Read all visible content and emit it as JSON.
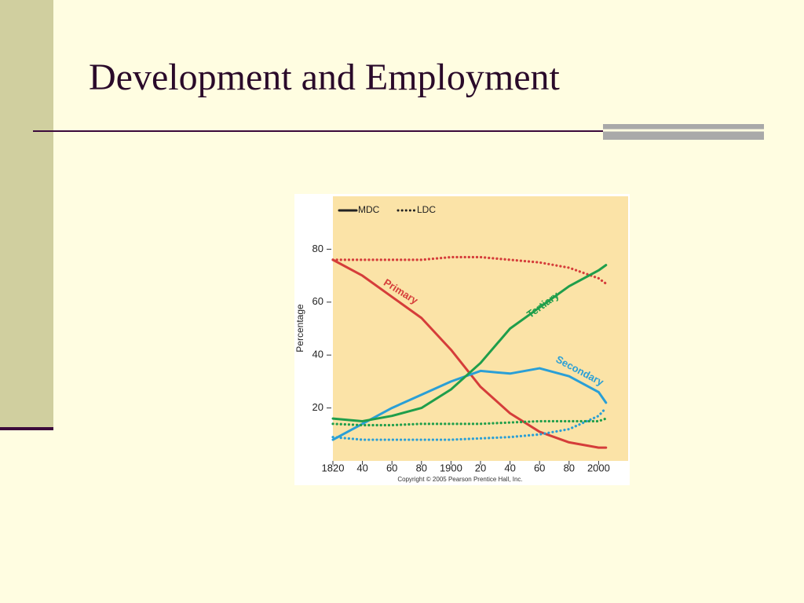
{
  "slide_title": "Development and Employment",
  "chart_data": {
    "type": "line",
    "ylabel": "Percentage",
    "note": "Copyright © 2005 Pearson Prentice Hall, Inc.",
    "x": [
      1820,
      1840,
      1860,
      1880,
      1900,
      1920,
      1940,
      1960,
      1980,
      2000,
      2005
    ],
    "xlim": [
      1820,
      2020
    ],
    "xticks": [
      1820,
      {
        "value": 1840,
        "label": "40"
      },
      {
        "value": 1860,
        "label": "60"
      },
      {
        "value": 1880,
        "label": "80"
      },
      1900,
      {
        "value": 1920,
        "label": "20"
      },
      {
        "value": 1940,
        "label": "40"
      },
      {
        "value": 1960,
        "label": "60"
      },
      {
        "value": 1980,
        "label": "80"
      },
      2000
    ],
    "ylim": [
      0,
      100
    ],
    "yticks": [
      20,
      40,
      60,
      80
    ],
    "legend": [
      {
        "label": "MDC",
        "dash": "solid"
      },
      {
        "label": "LDC",
        "dash": "dotted"
      }
    ],
    "series": [
      {
        "name": "Primary",
        "color": "#d53d3a",
        "dash": "solid",
        "values": [
          76,
          70,
          62,
          54,
          42,
          28,
          18,
          11,
          7,
          5,
          5
        ]
      },
      {
        "color": "#d53d3a",
        "dash": "dotted",
        "values": [
          76,
          76,
          76,
          76,
          77,
          77,
          76,
          75,
          73,
          69,
          67
        ]
      },
      {
        "name": "Secondary",
        "color": "#2a9fd6",
        "dash": "solid",
        "values": [
          8,
          14,
          20,
          25,
          30,
          34,
          33,
          35,
          32,
          26,
          22
        ]
      },
      {
        "color": "#2a9fd6",
        "dash": "dotted",
        "values": [
          9,
          8,
          8,
          8,
          8,
          8.5,
          9,
          10,
          12,
          17,
          20
        ]
      },
      {
        "name": "Tertiary",
        "color": "#1f9e4b",
        "dash": "solid",
        "values": [
          16,
          15,
          17,
          20,
          27,
          37,
          50,
          58,
          66,
          72,
          74
        ]
      },
      {
        "color": "#1f9e4b",
        "dash": "dotted",
        "values": [
          14,
          13.5,
          13.5,
          14,
          14,
          14,
          14.5,
          15,
          15,
          15,
          16
        ]
      }
    ]
  }
}
